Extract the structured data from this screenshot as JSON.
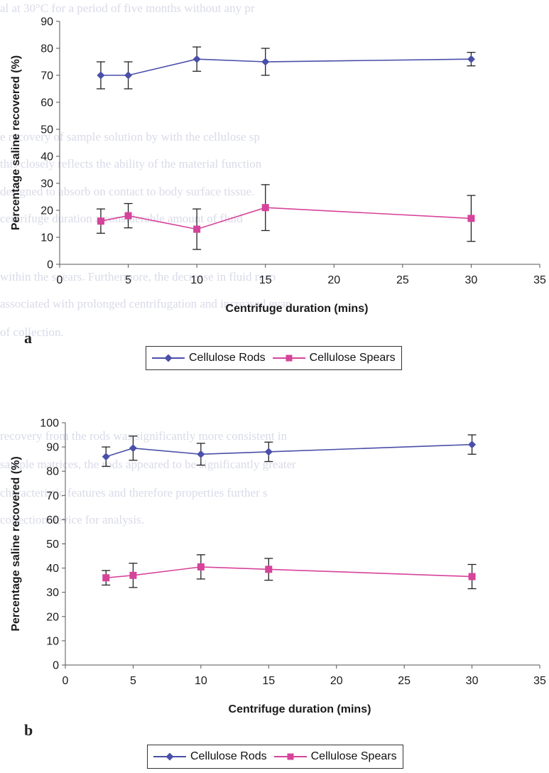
{
  "chart_data": [
    {
      "id": "a",
      "type": "line",
      "panel_label": "a",
      "xlabel": "Centrifuge duration (mins)",
      "ylabel": "Percentage saline recovered (%)",
      "xlim": [
        0,
        35
      ],
      "ylim": [
        0,
        90
      ],
      "x_ticks": [
        0,
        5,
        10,
        15,
        20,
        25,
        30,
        35
      ],
      "y_ticks": [
        0,
        10,
        20,
        30,
        40,
        50,
        60,
        70,
        80,
        90
      ],
      "grid": false,
      "legend_position": "bottom",
      "series": [
        {
          "name": "Cellulose Rods",
          "color": "#4a4fa8",
          "marker": "diamond",
          "x": [
            3,
            5,
            10,
            15,
            30
          ],
          "y": [
            70,
            70,
            76,
            75,
            76
          ],
          "error": [
            5,
            5,
            4.5,
            5,
            2.5
          ]
        },
        {
          "name": "Cellulose Spears",
          "color": "#d6439a",
          "marker": "square",
          "x": [
            3,
            5,
            10,
            15,
            30
          ],
          "y": [
            16,
            18,
            13,
            21,
            17
          ],
          "error": [
            4.5,
            4.5,
            7.5,
            8.5,
            8.5
          ]
        }
      ]
    },
    {
      "id": "b",
      "type": "line",
      "panel_label": "b",
      "xlabel": "Centrifuge duration (mins)",
      "ylabel": "Percentage saline recovered (%)",
      "xlim": [
        0,
        35
      ],
      "ylim": [
        0,
        100
      ],
      "x_ticks": [
        0,
        5,
        10,
        15,
        20,
        25,
        30,
        35
      ],
      "y_ticks": [
        0,
        10,
        20,
        30,
        40,
        50,
        60,
        70,
        80,
        90,
        100
      ],
      "grid": false,
      "legend_position": "bottom",
      "series": [
        {
          "name": "Cellulose Rods",
          "color": "#4a4fa8",
          "marker": "diamond",
          "x": [
            3,
            5,
            10,
            15,
            30
          ],
          "y": [
            86,
            89.5,
            87,
            88,
            91
          ],
          "error": [
            4,
            5,
            4.5,
            4,
            4
          ]
        },
        {
          "name": "Cellulose Spears",
          "color": "#d6439a",
          "marker": "square",
          "x": [
            3,
            5,
            10,
            15,
            30
          ],
          "y": [
            36,
            37,
            40.5,
            39.5,
            36.5
          ],
          "error": [
            3,
            5,
            5,
            4.5,
            5
          ]
        }
      ]
    }
  ],
  "background_text": [
    "al  at  30°C  for  a  period  of  five  months  without  any  pr",
    "e  recovery  of  sample  solution  by  with  the  cellulose  sp",
    "  this  closely  reflects  the  ability  of  the  material  function",
    "  designed  to  absorb  on  contact  to  body  surface  tissue.",
    "   centrifuge  duration  a  considerable  amount  of  fluid",
    "  within  the  spears.  Furthermore,  the  decrease  in  fluid  reco",
    "  associated  with  prolonged  centrifugation  and  increased  evap",
    "  of  collection.",
    "  recovery  from  the  rods  was  significantly  more  consistent  in",
    "  sample  matrices,  the  rods  appeared  to  be  significantly  greater",
    "  characteristic  features  and  therefore  properties  further  s",
    "  collection  device  for  analysis."
  ]
}
